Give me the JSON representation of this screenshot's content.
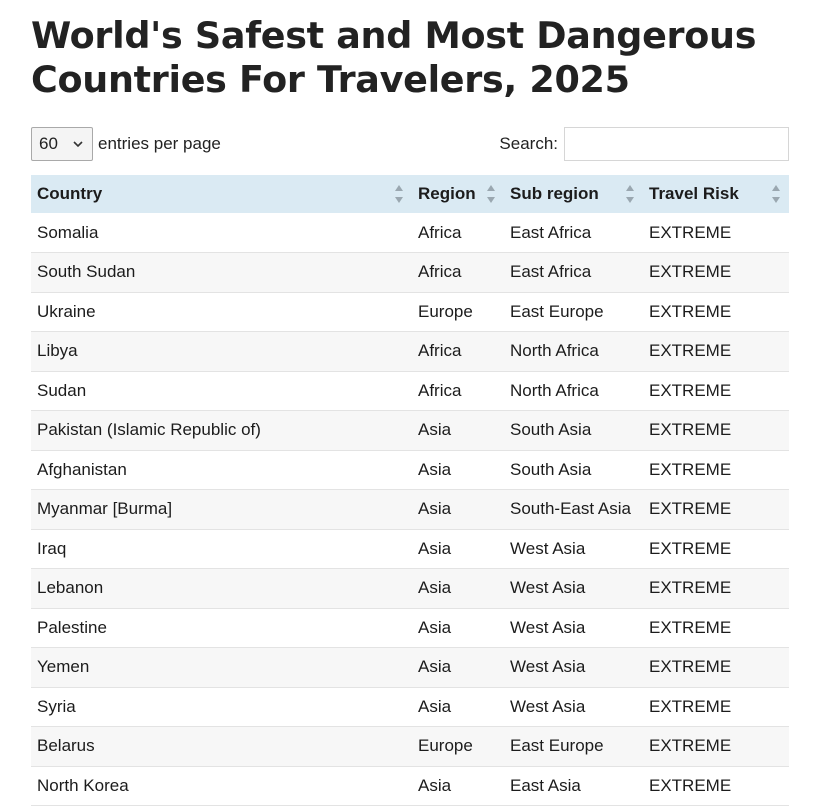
{
  "page": {
    "title_line1": "World's Safest and Most Dangerous",
    "title_line2": "Countries For Travelers, 2025"
  },
  "controls": {
    "entries_value": "60",
    "entries_label": "entries per page",
    "search_label": "Search:",
    "search_value": ""
  },
  "table": {
    "columns": [
      "Country",
      "Region",
      "Sub region",
      "Travel Risk"
    ],
    "rows": [
      [
        "Somalia",
        "Africa",
        "East Africa",
        "EXTREME"
      ],
      [
        "South Sudan",
        "Africa",
        "East Africa",
        "EXTREME"
      ],
      [
        "Ukraine",
        "Europe",
        "East Europe",
        "EXTREME"
      ],
      [
        "Libya",
        "Africa",
        "North Africa",
        "EXTREME"
      ],
      [
        "Sudan",
        "Africa",
        "North Africa",
        "EXTREME"
      ],
      [
        "Pakistan (Islamic Republic of)",
        "Asia",
        "South Asia",
        "EXTREME"
      ],
      [
        "Afghanistan",
        "Asia",
        "South Asia",
        "EXTREME"
      ],
      [
        "Myanmar [Burma]",
        "Asia",
        "South-East Asia",
        "EXTREME"
      ],
      [
        "Iraq",
        "Asia",
        "West Asia",
        "EXTREME"
      ],
      [
        "Lebanon",
        "Asia",
        "West Asia",
        "EXTREME"
      ],
      [
        "Palestine",
        "Asia",
        "West Asia",
        "EXTREME"
      ],
      [
        "Yemen",
        "Asia",
        "West Asia",
        "EXTREME"
      ],
      [
        "Syria",
        "Asia",
        "West Asia",
        "EXTREME"
      ],
      [
        "Belarus",
        "Europe",
        "East Europe",
        "EXTREME"
      ],
      [
        "North Korea",
        "Asia",
        "East Asia",
        "EXTREME"
      ]
    ]
  },
  "colors": {
    "header_bg": "#daeaf3",
    "stripe_bg": "#f7f7f7",
    "title_color": "#222222"
  },
  "icons": {
    "select_arrow": "chevron-down-icon",
    "sort": "sort-icon"
  }
}
